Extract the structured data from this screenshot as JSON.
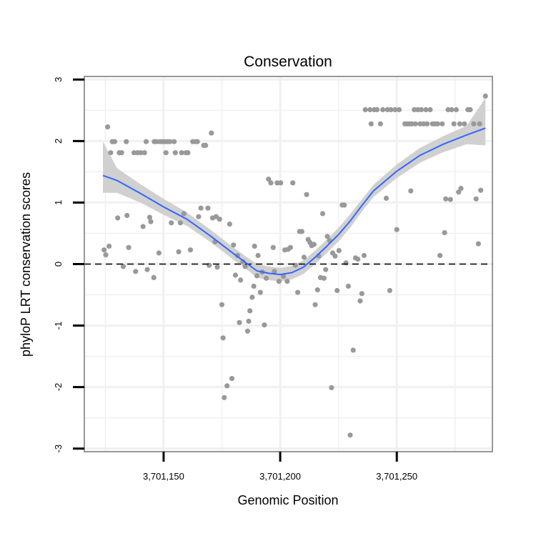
{
  "chart_data": {
    "type": "scatter",
    "title": "Conservation",
    "xlabel": "Genomic Position",
    "ylabel": "phyloP LRT conservation scores",
    "xlim": [
      3701116,
      3701291
    ],
    "ylim": [
      -3.05,
      3.05
    ],
    "x_ticks": [
      3701150,
      3701200,
      3701250
    ],
    "x_tick_labels": [
      "3,701,150",
      "3,701,200",
      "3,701,250"
    ],
    "y_ticks": [
      -3,
      -2,
      -1,
      0,
      1,
      2,
      3
    ],
    "y_tick_labels": [
      "-3",
      "-2",
      "-1",
      "0",
      "1",
      "2",
      "3"
    ],
    "grid": true,
    "reference_line": {
      "y": 0,
      "style": "dashed"
    },
    "colors": {
      "points": "#999999",
      "smooth_line": "#3366FF",
      "ribbon": "#d0d0d0",
      "grid": "#f0f0f0",
      "frame": "#7f7f7f"
    },
    "series": [
      {
        "name": "scores",
        "points": [
          [
            3701124.5,
            0.23
          ],
          [
            3701125.2,
            0.15
          ],
          [
            3701126,
            2.23
          ],
          [
            3701126.6,
            0.29
          ],
          [
            3701127.3,
            1.81
          ],
          [
            3701128,
            1.99
          ],
          [
            3701129,
            1.99
          ],
          [
            3701130.3,
            0.75
          ],
          [
            3701131,
            1.81
          ],
          [
            3701132,
            1.81
          ],
          [
            3701132.7,
            -0.04
          ],
          [
            3701134,
            1.99
          ],
          [
            3701134.3,
            0.79
          ],
          [
            3701135,
            0.27
          ],
          [
            3701137.3,
            1.81
          ],
          [
            3701138,
            -0.12
          ],
          [
            3701138.8,
            1.81
          ],
          [
            3701140.2,
            1.81
          ],
          [
            3701141.2,
            0.61
          ],
          [
            3701141.8,
            1.81
          ],
          [
            3701142.5,
            1.99
          ],
          [
            3701143,
            -0.09
          ],
          [
            3701144,
            0.76
          ],
          [
            3701144.5,
            0.69
          ],
          [
            3701145.8,
            -0.22
          ],
          [
            3701146,
            1.99
          ],
          [
            3701147,
            1.99
          ],
          [
            3701148,
            0.18
          ],
          [
            3701148.5,
            1.99
          ],
          [
            3701149.5,
            1.99
          ],
          [
            3701150.5,
            1.99
          ],
          [
            3701151,
            1.81
          ],
          [
            3701151.5,
            1.99
          ],
          [
            3701152.7,
            1.99
          ],
          [
            3701153.3,
            0.67
          ],
          [
            3701154.5,
            1.99
          ],
          [
            3701155,
            1.81
          ],
          [
            3701156.5,
            0.2
          ],
          [
            3701157.2,
            0.67
          ],
          [
            3701157.7,
            1.81
          ],
          [
            3701158.7,
            0.82
          ],
          [
            3701159.6,
            1.81
          ],
          [
            3701160.4,
            1.81
          ],
          [
            3701161.5,
            0.23
          ],
          [
            3701162.5,
            1.99
          ],
          [
            3701163.5,
            1.99
          ],
          [
            3701164.5,
            1.99
          ],
          [
            3701165,
            0.77
          ],
          [
            3701166,
            0.91
          ],
          [
            3701167.2,
            1.93
          ],
          [
            3701168,
            1.93
          ],
          [
            3701169,
            0.91
          ],
          [
            3701169.5,
            -0.02
          ],
          [
            3701170.5,
            2.13
          ],
          [
            3701171,
            0.75
          ],
          [
            3701172,
            0.36
          ],
          [
            3701172.5,
            0.77
          ],
          [
            3701173,
            -0.05
          ],
          [
            3701174,
            0.73
          ],
          [
            3701175,
            -0.66
          ],
          [
            3701175.5,
            -1.2
          ],
          [
            3701176,
            -2.17
          ],
          [
            3701177.2,
            -1.98
          ],
          [
            3701178.3,
            0.65
          ],
          [
            3701179.3,
            -1.86
          ],
          [
            3701180,
            0.31
          ],
          [
            3701180.8,
            -0.18
          ],
          [
            3701181.7,
            0.14
          ],
          [
            3701182.5,
            -0.95
          ],
          [
            3701183,
            -0.26
          ],
          [
            3701184,
            0.04
          ],
          [
            3701185,
            -0.04
          ],
          [
            3701186,
            -1.09
          ],
          [
            3701186.5,
            -0.93
          ],
          [
            3701187,
            -0.76
          ],
          [
            3701188,
            -0.54
          ],
          [
            3701188.7,
            -0.36
          ],
          [
            3701189,
            0.29
          ],
          [
            3701190,
            -0.19
          ],
          [
            3701190.5,
            0.14
          ],
          [
            3701191.5,
            -0.46
          ],
          [
            3701192.3,
            -0.13
          ],
          [
            3701193.2,
            -0.99
          ],
          [
            3701194,
            -0.23
          ],
          [
            3701195,
            1.38
          ],
          [
            3701196,
            1.32
          ],
          [
            3701197,
            0.27
          ],
          [
            3701197.5,
            -0.12
          ],
          [
            3701198.7,
            1.32
          ],
          [
            3701199.5,
            -0.28
          ],
          [
            3701200.2,
            1.32
          ],
          [
            3701201.4,
            -0.2
          ],
          [
            3701202,
            0.23
          ],
          [
            3701203,
            -0.28
          ],
          [
            3701203.4,
            0.24
          ],
          [
            3701204.4,
            0.27
          ],
          [
            3701205.4,
            1.32
          ],
          [
            3701206.5,
            -0.02
          ],
          [
            3701207.5,
            -0.46
          ],
          [
            3701208.3,
            0.53
          ],
          [
            3701209.3,
            0.53
          ],
          [
            3701210.2,
            0.11
          ],
          [
            3701211.3,
            1.13
          ],
          [
            3701212,
            0.4
          ],
          [
            3701212.8,
            0.35
          ],
          [
            3701213.5,
            0.3
          ],
          [
            3701214.5,
            0.32
          ],
          [
            3701215,
            -0.66
          ],
          [
            3701216,
            -0.42
          ],
          [
            3701216.5,
            0.13
          ],
          [
            3701217.3,
            -0.22
          ],
          [
            3701218.2,
            0.82
          ],
          [
            3701218.8,
            -0.23
          ],
          [
            3701219.5,
            -0.09
          ],
          [
            3701220.2,
            0.45
          ],
          [
            3701221.2,
            0.38
          ],
          [
            3701222,
            -2.01
          ],
          [
            3701222.5,
            0.18
          ],
          [
            3701223.5,
            0.13
          ],
          [
            3701224.4,
            -0.43
          ],
          [
            3701225.2,
            0.22
          ],
          [
            3701226.6,
            0.96
          ],
          [
            3701227.5,
            0.96
          ],
          [
            3701228.2,
            0.02
          ],
          [
            3701229.2,
            -0.36
          ],
          [
            3701230,
            -2.78
          ],
          [
            3701231.3,
            -1.4
          ],
          [
            3701232.3,
            0.1
          ],
          [
            3701233.3,
            0.08
          ],
          [
            3701234.3,
            -0.6
          ],
          [
            3701235,
            -0.48
          ],
          [
            3701236,
            0.14
          ],
          [
            3701236.5,
            2.51
          ],
          [
            3701238.5,
            2.51
          ],
          [
            3701239,
            2.28
          ],
          [
            3701240.3,
            2.51
          ],
          [
            3701241.5,
            2.51
          ],
          [
            3701243,
            2.28
          ],
          [
            3701244,
            2.51
          ],
          [
            3701245.5,
            1.07
          ],
          [
            3701246,
            2.51
          ],
          [
            3701247,
            -0.43
          ],
          [
            3701247.5,
            2.51
          ],
          [
            3701249.3,
            2.51
          ],
          [
            3701250,
            0.56
          ],
          [
            3701251,
            2.51
          ],
          [
            3701253.5,
            2.28
          ],
          [
            3701254.5,
            2.28
          ],
          [
            3701255.5,
            2.28
          ],
          [
            3701256,
            1.19
          ],
          [
            3701256.5,
            2.28
          ],
          [
            3701257.5,
            2.51
          ],
          [
            3701258,
            2.28
          ],
          [
            3701259,
            2.51
          ],
          [
            3701260,
            2.28
          ],
          [
            3701260.5,
            2.51
          ],
          [
            3701261.5,
            2.28
          ],
          [
            3701262.5,
            2.51
          ],
          [
            3701263,
            2.28
          ],
          [
            3701264.3,
            2.51
          ],
          [
            3701265.3,
            2.28
          ],
          [
            3701266.5,
            2.28
          ],
          [
            3701267.5,
            2.28
          ],
          [
            3701268.5,
            0.14
          ],
          [
            3701269.5,
            2.28
          ],
          [
            3701270.5,
            0.51
          ],
          [
            3701271,
            1.06
          ],
          [
            3701272,
            2.51
          ],
          [
            3701273,
            1.05
          ],
          [
            3701273.5,
            2.51
          ],
          [
            3701274.5,
            2.28
          ],
          [
            3701275.5,
            2.51
          ],
          [
            3701276.5,
            1.17
          ],
          [
            3701277,
            2.28
          ],
          [
            3701277.5,
            1.23
          ],
          [
            3701279,
            2.28
          ],
          [
            3701280.5,
            2.51
          ],
          [
            3701281.5,
            2.51
          ],
          [
            3701283,
            2.28
          ],
          [
            3701284,
            1.06
          ],
          [
            3701285,
            0.33
          ],
          [
            3701285.5,
            2.28
          ],
          [
            3701286,
            1.2
          ],
          [
            3701288,
            2.73
          ]
        ]
      }
    ],
    "smooth": {
      "x": [
        3701124,
        3701130,
        3701140,
        3701150,
        3701160,
        3701170,
        3701180,
        3701185,
        3701190,
        3701195,
        3701200,
        3701205,
        3701210,
        3701215,
        3701220,
        3701225,
        3701230,
        3701235,
        3701240,
        3701250,
        3701260,
        3701270,
        3701280,
        3701288
      ],
      "y": [
        1.44,
        1.36,
        1.15,
        0.93,
        0.73,
        0.46,
        0.17,
        0.03,
        -0.11,
        -0.15,
        -0.17,
        -0.14,
        -0.05,
        0.11,
        0.29,
        0.48,
        0.7,
        0.95,
        1.19,
        1.51,
        1.77,
        1.95,
        2.1,
        2.21
      ],
      "lower": [
        1.16,
        1.16,
        1.0,
        0.8,
        0.62,
        0.36,
        0.07,
        -0.07,
        -0.22,
        -0.26,
        -0.28,
        -0.25,
        -0.16,
        0.0,
        0.18,
        0.37,
        0.59,
        0.85,
        1.09,
        1.4,
        1.65,
        1.82,
        1.95,
        1.93
      ],
      "upper": [
        1.99,
        1.56,
        1.3,
        1.06,
        0.84,
        0.56,
        0.27,
        0.13,
        0.0,
        -0.04,
        -0.06,
        -0.03,
        0.06,
        0.22,
        0.4,
        0.59,
        0.81,
        1.05,
        1.29,
        1.62,
        1.89,
        2.08,
        2.25,
        2.7
      ]
    }
  }
}
